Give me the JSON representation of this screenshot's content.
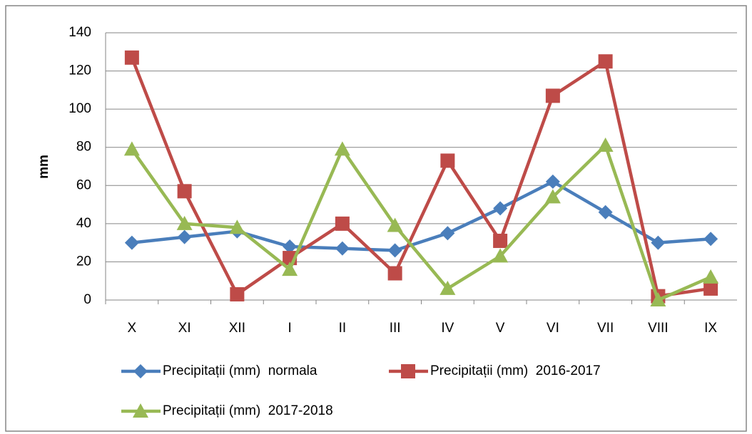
{
  "chart_data": {
    "type": "line",
    "y_label": "mm",
    "categories": [
      "X",
      "XI",
      "XII",
      "I",
      "II",
      "III",
      "IV",
      "V",
      "VI",
      "VII",
      "VIII",
      "IX"
    ],
    "series": [
      {
        "name": "Precipitații (mm)  normala",
        "color": "#4a7ebb",
        "marker": "diamond",
        "values": [
          30,
          33,
          36,
          28,
          27,
          26,
          35,
          48,
          62,
          46,
          30,
          32
        ]
      },
      {
        "name": "Precipitații (mm)  2016-2017",
        "color": "#be4b48",
        "marker": "square",
        "values": [
          127,
          57,
          3,
          22,
          40,
          14,
          73,
          31,
          107,
          125,
          2,
          6
        ]
      },
      {
        "name": "Precipitații (mm)  2017-2018",
        "color": "#98b954",
        "marker": "triangle",
        "values": [
          79,
          40,
          38,
          16,
          79,
          39,
          6,
          23,
          54,
          81,
          0,
          12
        ]
      }
    ],
    "ylim": [
      0,
      140
    ],
    "yticks": [
      0,
      20,
      40,
      60,
      80,
      100,
      120,
      140
    ],
    "grid": true
  }
}
